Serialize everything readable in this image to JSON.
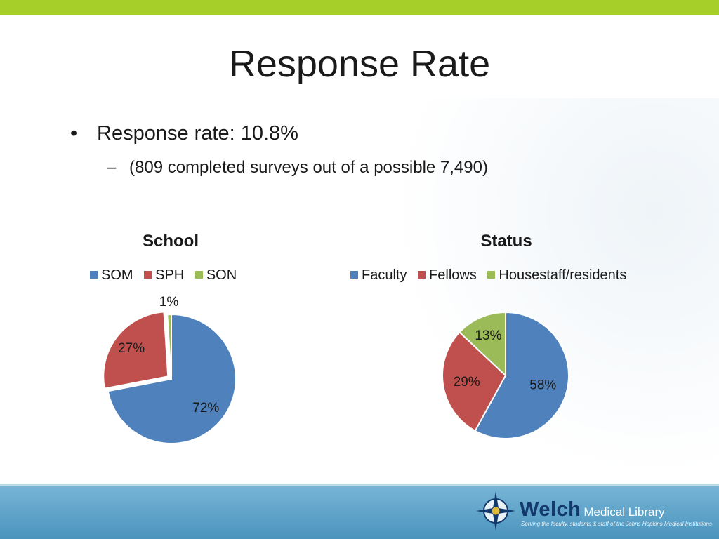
{
  "slide": {
    "title": "Response Rate",
    "bullets": [
      {
        "text": "Response rate:  10.8%"
      },
      {
        "text": "(809 completed surveys out of a possible 7,490)"
      }
    ],
    "bullet_glyph": "•",
    "sub_bullet_glyph": "–"
  },
  "chart_data": [
    {
      "type": "pie",
      "title": "School",
      "categories": [
        "SOM",
        "SPH",
        "SON"
      ],
      "values": [
        72,
        27,
        1
      ],
      "data_labels": [
        "72%",
        "27%",
        "1%"
      ],
      "colors": [
        "#4f81bd",
        "#c0504d",
        "#9bbb59"
      ],
      "exploded_category": "SPH",
      "legend": "top"
    },
    {
      "type": "pie",
      "title": "Status",
      "categories": [
        "Faculty",
        "Fellows",
        "Housestaff/residents"
      ],
      "values": [
        58,
        29,
        13
      ],
      "data_labels": [
        "58%",
        "29%",
        "13%"
      ],
      "colors": [
        "#4f81bd",
        "#c0504d",
        "#9bbb59"
      ],
      "legend": "top"
    }
  ],
  "footer": {
    "brand_name": "Welch",
    "brand_suffix": "Medical Library",
    "tagline": "Serving the faculty, students & staff of the Johns Hopkins Medical Institutions",
    "logo_icon": "compass-rose-icon",
    "top_bar_color": "#a6cf2a",
    "footer_color": "#5fa3c9"
  }
}
